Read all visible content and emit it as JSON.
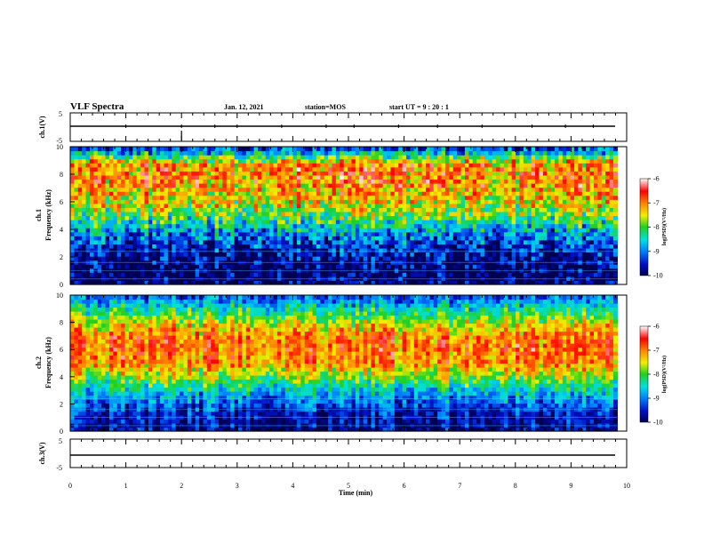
{
  "header": {
    "title": "VLF Spectra",
    "date": "Jan. 12, 2021",
    "station": "station=MOS",
    "start_ut": "start UT =  9 : 20 : 1"
  },
  "chart_data": [
    {
      "type": "line",
      "name": "ch1-waveform",
      "ylabel": "ch.1(V)",
      "xlim": [
        0,
        10
      ],
      "ylim": [
        -5,
        5
      ],
      "yticks": [
        "5",
        "-5"
      ],
      "value_v": 0
    },
    {
      "type": "heatmap",
      "name": "ch1-spectrogram",
      "ylabel": "ch.1\nFrequency (kHz)",
      "xlim": [
        0,
        10
      ],
      "ylim": [
        0,
        10
      ],
      "yticks": [
        "0",
        "2",
        "4",
        "6",
        "8",
        "10"
      ],
      "data_end_min": 9.83,
      "profile_khz": [
        0,
        1,
        2,
        3,
        4,
        5,
        6,
        7,
        8,
        8.8,
        9.5,
        10
      ],
      "profile_log_psd": [
        -10,
        -10,
        -9.8,
        -9.4,
        -8.8,
        -8,
        -7.5,
        -7.2,
        -7,
        -7.2,
        -8.5,
        -9.5
      ],
      "colorbar": {
        "label": "log(PSD)(V²/Hz)",
        "ticks": [
          "-6",
          "-7",
          "-8",
          "-9",
          "-10"
        ],
        "range": [
          -10,
          -6
        ]
      }
    },
    {
      "type": "heatmap",
      "name": "ch2-spectrogram",
      "ylabel": "ch.2\nFrequency (kHz)",
      "xlim": [
        0,
        10
      ],
      "ylim": [
        0,
        10
      ],
      "yticks": [
        "0",
        "2",
        "4",
        "6",
        "8",
        "10"
      ],
      "data_end_min": 9.83,
      "profile_khz": [
        0,
        1,
        2,
        3,
        4,
        5,
        6,
        7,
        8,
        9,
        10
      ],
      "profile_log_psd": [
        -9.8,
        -9.6,
        -9.2,
        -8.6,
        -7.8,
        -7.1,
        -6.9,
        -7.0,
        -7.6,
        -8.4,
        -9.2
      ],
      "colorbar": {
        "label": "log(PSD)(V²/Hz)",
        "ticks": [
          "-6",
          "-7",
          "-8",
          "-9",
          "-10"
        ],
        "range": [
          -10,
          -6
        ]
      }
    },
    {
      "type": "line",
      "name": "ch3-waveform",
      "ylabel": "ch.3(V)",
      "xlim": [
        0,
        10
      ],
      "ylim": [
        -5,
        5
      ],
      "yticks": [
        "5",
        "-5"
      ],
      "value_v": 0
    }
  ],
  "x_axis": {
    "label": "Time (min)",
    "ticks": [
      "0",
      "1",
      "2",
      "3",
      "4",
      "5",
      "6",
      "7",
      "8",
      "9",
      "10"
    ]
  }
}
